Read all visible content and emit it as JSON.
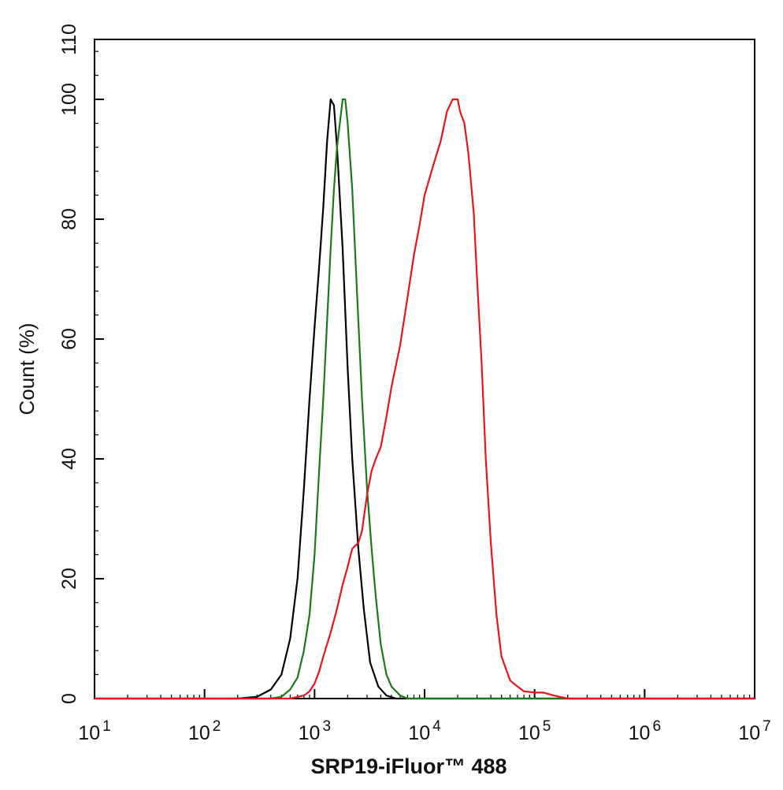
{
  "chart_data": {
    "type": "line",
    "xlabel": "SRP19-iFluor™ 488",
    "ylabel": "Count  (%)",
    "xscale": "log",
    "xlim": [
      10,
      10000000
    ],
    "ylim": [
      0,
      110
    ],
    "x_ticks": [
      {
        "value": 10,
        "base": "10",
        "exp": "1"
      },
      {
        "value": 100,
        "base": "10",
        "exp": "2"
      },
      {
        "value": 1000,
        "base": "10",
        "exp": "3"
      },
      {
        "value": 10000,
        "base": "10",
        "exp": "4"
      },
      {
        "value": 100000,
        "base": "10",
        "exp": "5"
      },
      {
        "value": 1000000,
        "base": "10",
        "exp": "6"
      },
      {
        "value": 10000000,
        "base": "10",
        "exp": "7"
      }
    ],
    "y_ticks": [
      0,
      20,
      40,
      60,
      80,
      100,
      110
    ],
    "grid": false,
    "series": [
      {
        "color": "#000000",
        "points": [
          [
            10,
            0
          ],
          [
            200,
            0
          ],
          [
            300,
            0.3
          ],
          [
            400,
            1.5
          ],
          [
            500,
            4
          ],
          [
            600,
            10
          ],
          [
            700,
            20
          ],
          [
            800,
            35
          ],
          [
            900,
            50
          ],
          [
            1000,
            62
          ],
          [
            1100,
            72
          ],
          [
            1200,
            82
          ],
          [
            1300,
            93
          ],
          [
            1400,
            100
          ],
          [
            1500,
            99
          ],
          [
            1600,
            92
          ],
          [
            1800,
            75
          ],
          [
            2000,
            55
          ],
          [
            2200,
            40
          ],
          [
            2500,
            25
          ],
          [
            2800,
            15
          ],
          [
            3200,
            6
          ],
          [
            3800,
            2
          ],
          [
            4500,
            0.5
          ],
          [
            5500,
            0
          ],
          [
            10000000,
            0
          ]
        ]
      },
      {
        "color": "#1a7a1a",
        "points": [
          [
            10,
            0
          ],
          [
            400,
            0
          ],
          [
            500,
            0.3
          ],
          [
            600,
            1.5
          ],
          [
            700,
            3.5
          ],
          [
            800,
            8
          ],
          [
            900,
            14
          ],
          [
            1000,
            24
          ],
          [
            1100,
            38
          ],
          [
            1200,
            50
          ],
          [
            1300,
            63
          ],
          [
            1400,
            75
          ],
          [
            1500,
            85
          ],
          [
            1600,
            92
          ],
          [
            1800,
            100
          ],
          [
            1900,
            100
          ],
          [
            2000,
            96
          ],
          [
            2200,
            85
          ],
          [
            2400,
            70
          ],
          [
            2700,
            50
          ],
          [
            3000,
            35
          ],
          [
            3300,
            25
          ],
          [
            3600,
            17
          ],
          [
            4000,
            9
          ],
          [
            4500,
            4
          ],
          [
            5000,
            2
          ],
          [
            6000,
            0.5
          ],
          [
            7000,
            0
          ],
          [
            10000000,
            0
          ]
        ]
      },
      {
        "color": "#e8141c",
        "points": [
          [
            10,
            0
          ],
          [
            600,
            0
          ],
          [
            800,
            0.5
          ],
          [
            900,
            1.2
          ],
          [
            1000,
            2.5
          ],
          [
            1100,
            4.5
          ],
          [
            1200,
            7
          ],
          [
            1400,
            11
          ],
          [
            1600,
            15
          ],
          [
            1800,
            19
          ],
          [
            2000,
            22
          ],
          [
            2200,
            25
          ],
          [
            2500,
            26
          ],
          [
            2700,
            28
          ],
          [
            3000,
            34
          ],
          [
            3300,
            38
          ],
          [
            3600,
            40
          ],
          [
            4000,
            42
          ],
          [
            4500,
            47
          ],
          [
            5000,
            52
          ],
          [
            6000,
            59
          ],
          [
            7000,
            67
          ],
          [
            8000,
            74
          ],
          [
            9000,
            79
          ],
          [
            10000,
            84
          ],
          [
            12000,
            89
          ],
          [
            14000,
            93
          ],
          [
            16000,
            98
          ],
          [
            18000,
            100
          ],
          [
            20000,
            100
          ],
          [
            21000,
            98
          ],
          [
            23000,
            96
          ],
          [
            25000,
            91
          ],
          [
            28000,
            81
          ],
          [
            30000,
            70
          ],
          [
            33000,
            56
          ],
          [
            36000,
            40
          ],
          [
            40000,
            26
          ],
          [
            45000,
            14
          ],
          [
            50000,
            7
          ],
          [
            60000,
            3
          ],
          [
            70000,
            2
          ],
          [
            80000,
            1.2
          ],
          [
            100000,
            1
          ],
          [
            120000,
            1
          ],
          [
            150000,
            0.5
          ],
          [
            200000,
            0
          ],
          [
            10000000,
            0
          ]
        ]
      }
    ]
  }
}
